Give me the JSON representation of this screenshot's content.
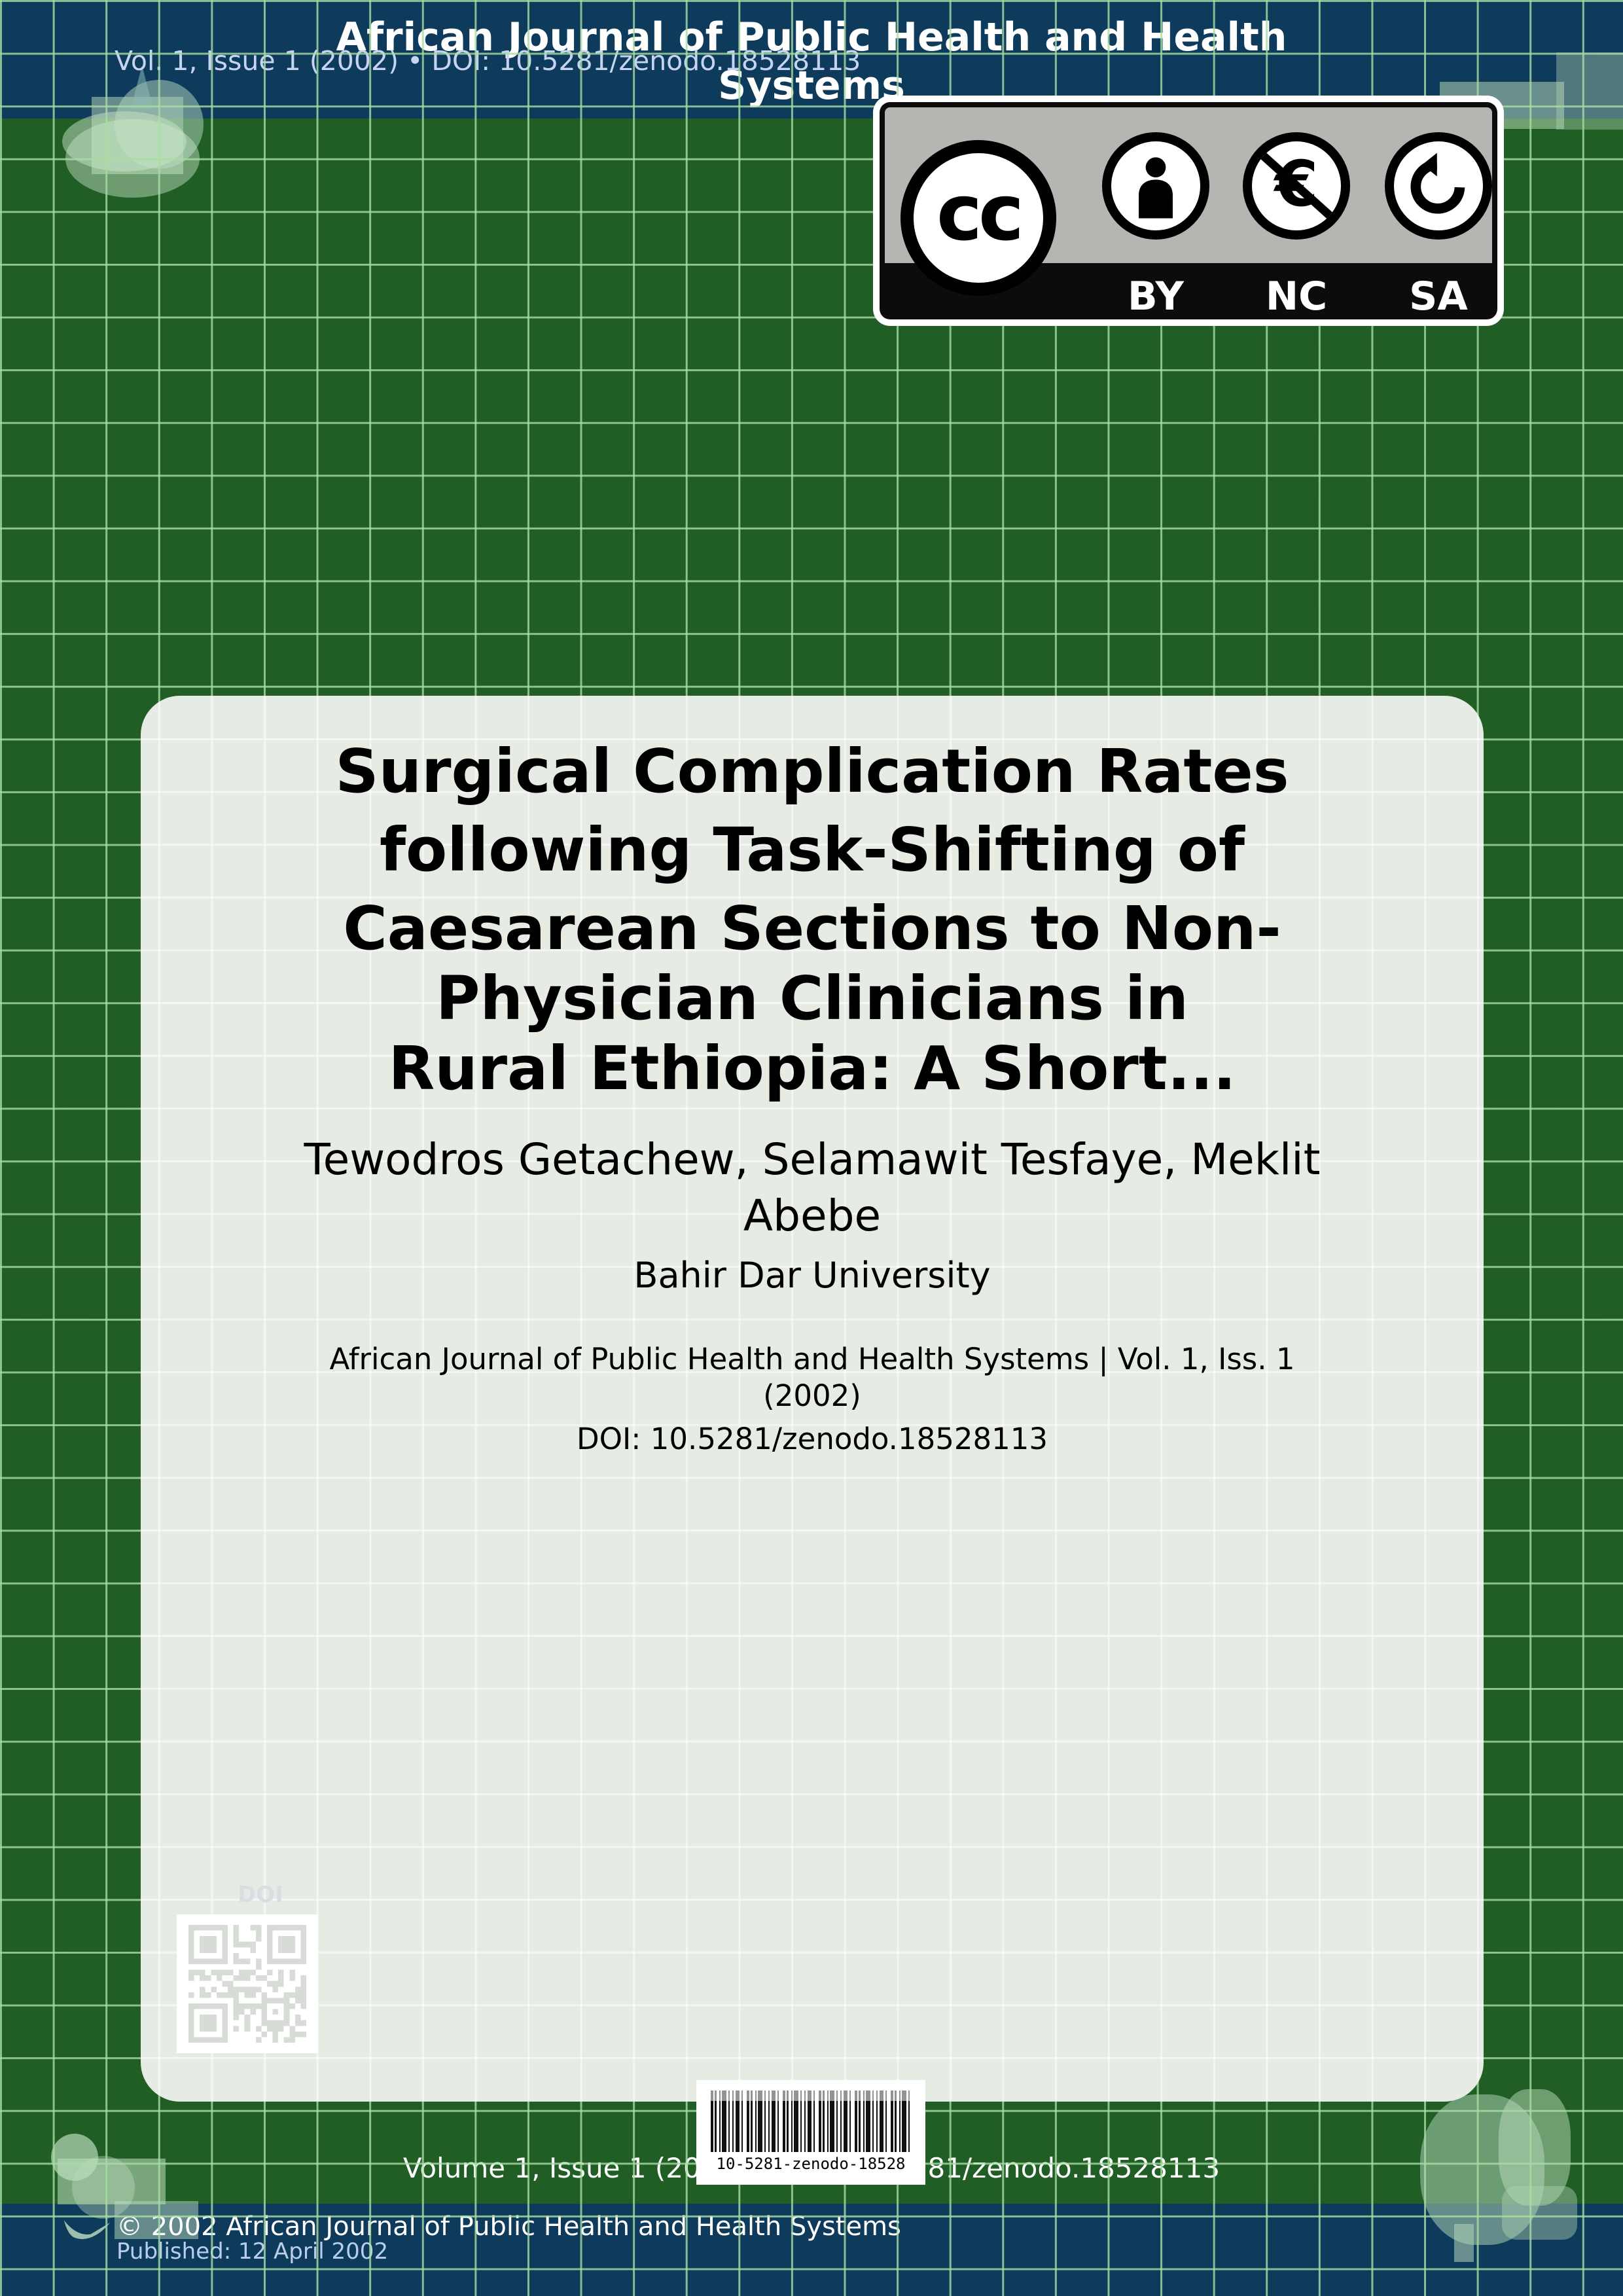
{
  "header": {
    "journal_title": "African Journal of Public Health and Health Systems",
    "issue_line": "Vol. 1, Issue 1 (2002) • DOI: 10.5281/zenodo.18528113"
  },
  "license_badge": {
    "cc": "cc",
    "by": "BY",
    "nc": "NC",
    "sa": "SA",
    "nc_symbol": "€"
  },
  "card": {
    "title_lines": [
      "Surgical Complication Rates",
      "following Task-Shifting of",
      "Caesarean Sections to Non-",
      "Physician Clinicians in",
      "Rural Ethiopia: A Short..."
    ],
    "authors": "Tewodros Getachew, Selamawit Tesfaye, Meklit Abebe",
    "affiliation": "Bahir Dar University",
    "journal_line": "African Journal of Public Health and Health Systems | Vol. 1, Iss. 1 (2002)",
    "doi_line": "DOI: 10.5281/zenodo.18528113",
    "qr_caption": "DOI"
  },
  "barcode": {
    "label": "10-5281-zenodo-18528"
  },
  "bottom_line": "Volume 1, Issue 1 (2002) • DOI: 10.5281/zenodo.18528113",
  "footer": {
    "copyright": "© 2002 African Journal of Public Health and Health Systems",
    "published": "Published: 12 April 2002"
  },
  "colors": {
    "background_green": "#215e25",
    "band_navy": "#0e3a5b",
    "grid_line": "#a8dca3",
    "card_background": "#e6ebe4",
    "accent_light_green": "#bcd9bc"
  }
}
